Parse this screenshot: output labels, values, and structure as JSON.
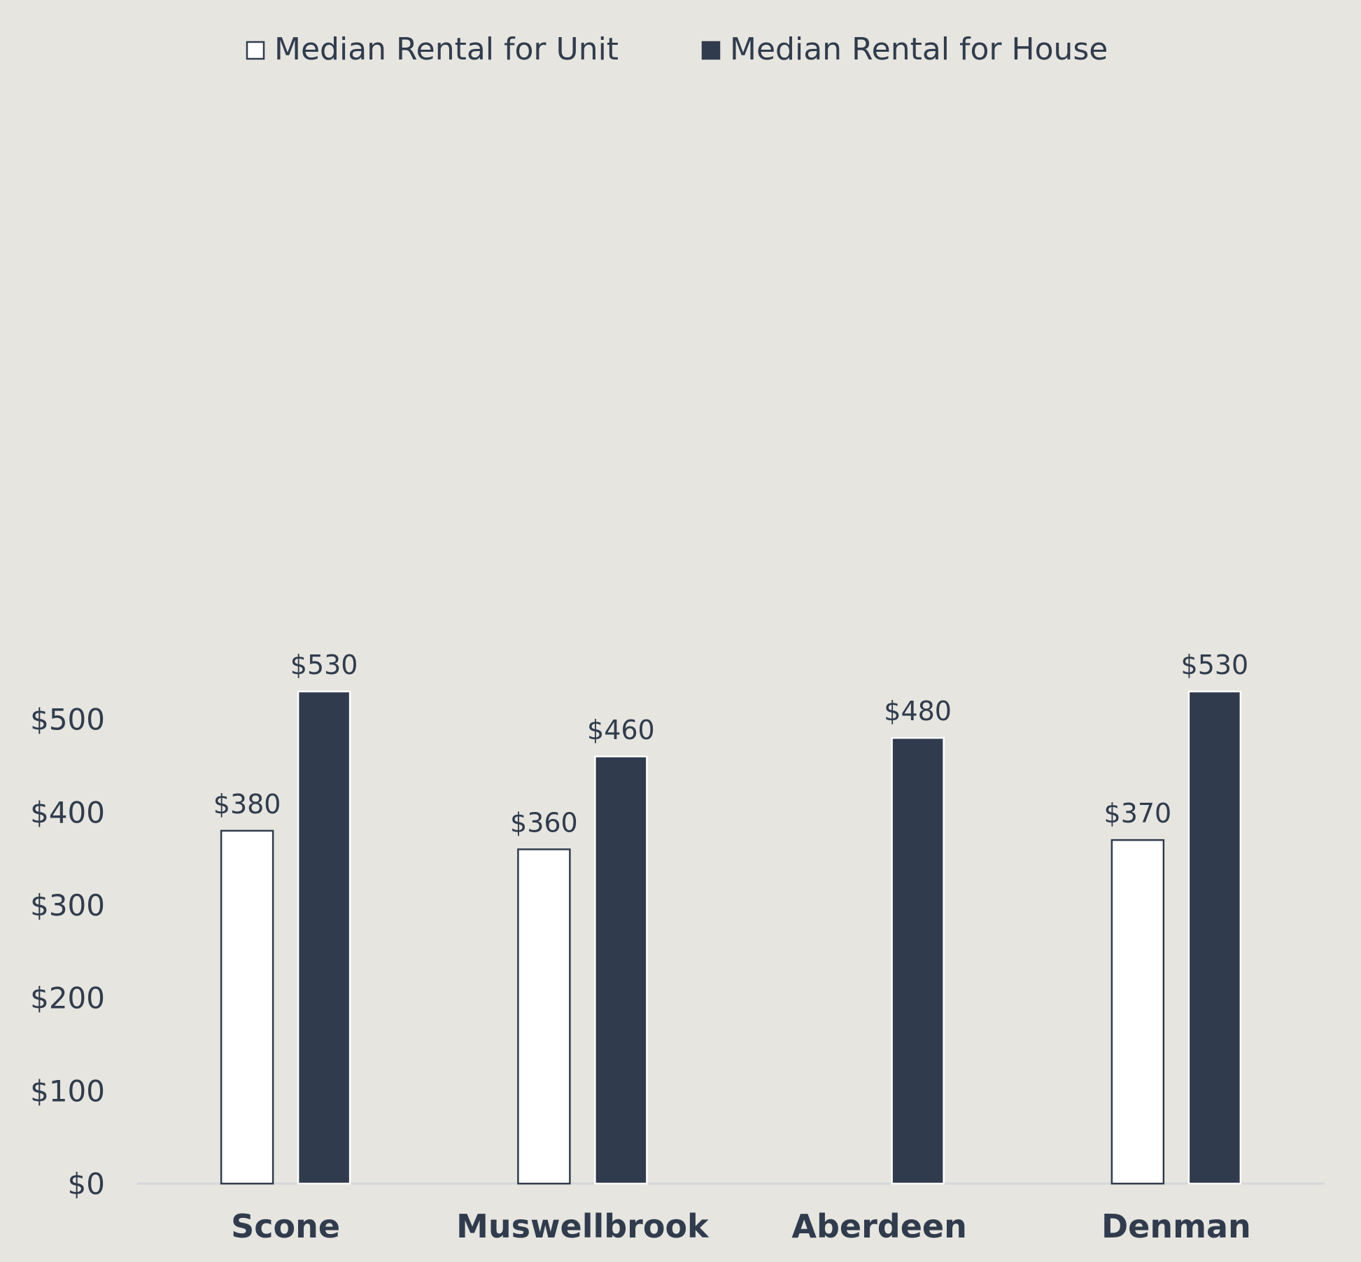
{
  "chart_data": {
    "type": "bar",
    "categories": [
      "Scone",
      "Muswellbrook",
      "Aberdeen",
      "Denman"
    ],
    "series": [
      {
        "name": "Median Rental for Unit",
        "color": "#ffffff",
        "values": [
          380,
          360,
          null,
          370
        ],
        "labels": [
          "$380",
          "$360",
          "",
          "$370"
        ]
      },
      {
        "name": "Median Rental for House",
        "color": "#303c4d",
        "values": [
          530,
          460,
          480,
          530
        ],
        "labels": [
          "$530",
          "$460",
          "$480",
          "$530"
        ]
      }
    ],
    "ylim": [
      0,
      500
    ],
    "yticks": [
      {
        "value": 0,
        "label": "$0"
      },
      {
        "value": 100,
        "label": "$100"
      },
      {
        "value": 200,
        "label": "$200"
      },
      {
        "value": 300,
        "label": "$300"
      },
      {
        "value": 400,
        "label": "$400"
      },
      {
        "value": 500,
        "label": "$500"
      }
    ],
    "legend_position": "top-center",
    "grid": false,
    "colors": {
      "background": "#e6e5df",
      "text": "#303c4d",
      "axis_line": "#d4d6da",
      "bar_outline": "#303c4d"
    }
  }
}
